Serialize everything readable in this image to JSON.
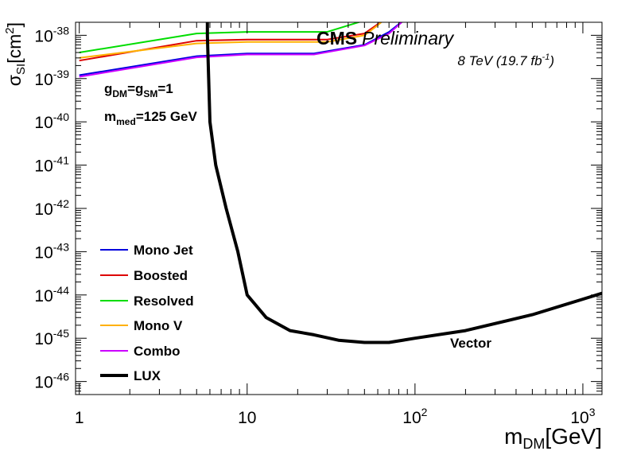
{
  "chart_data": {
    "type": "line",
    "x_scale": "log",
    "y_scale": "log",
    "xlim": [
      0.95,
      1300
    ],
    "ylim": [
      5e-47,
      2e-38
    ],
    "x_ticks": [
      {
        "value": 1,
        "base": "1",
        "exp": ""
      },
      {
        "value": 10,
        "base": "10",
        "exp": ""
      },
      {
        "value": 100,
        "base": "10",
        "exp": "2"
      },
      {
        "value": 1000,
        "base": "10",
        "exp": "3"
      }
    ],
    "y_ticks": [
      {
        "value": 1e-38,
        "base": "10",
        "exp": "-38"
      },
      {
        "value": 1e-39,
        "base": "10",
        "exp": "-39"
      },
      {
        "value": 1e-40,
        "base": "10",
        "exp": "-40"
      },
      {
        "value": 1e-41,
        "base": "10",
        "exp": "-41"
      },
      {
        "value": 1e-42,
        "base": "10",
        "exp": "-42"
      },
      {
        "value": 1e-43,
        "base": "10",
        "exp": "-43"
      },
      {
        "value": 1e-44,
        "base": "10",
        "exp": "-44"
      },
      {
        "value": 1e-45,
        "base": "10",
        "exp": "-45"
      },
      {
        "value": 1e-46,
        "base": "10",
        "exp": "-46"
      }
    ],
    "xlabel": {
      "main": "m",
      "sub": "DM",
      "unit": "[GeV]"
    },
    "ylabel": {
      "main": "σ",
      "sub": "SI",
      "unit": "[cm",
      "sup": "2",
      "close": "]"
    },
    "header": {
      "cms": "CMS",
      "preliminary": "Preliminary",
      "lumi": "8 TeV (19.7 fb",
      "lumi_sup": "-1",
      "lumi_close": ")"
    },
    "annotations": {
      "coupling": {
        "g1": "g",
        "s1": "DM",
        "eq": "=g",
        "s2": "SM",
        "val": "=1"
      },
      "mediator": {
        "m": "m",
        "s": "med",
        "val": "=125 GeV"
      },
      "model": "Vector"
    },
    "legend_position": "bottom-left",
    "series": [
      {
        "name": "Mono Jet",
        "color": "#0000dd",
        "width": 2,
        "points": [
          [
            1,
            1.2e-39
          ],
          [
            5,
            3.3e-39
          ],
          [
            10,
            3.8e-39
          ],
          [
            25,
            3.8e-39
          ],
          [
            50,
            6e-39
          ],
          [
            70,
            1.2e-38
          ],
          [
            90,
            2.6e-38
          ]
        ]
      },
      {
        "name": "Boosted",
        "color": "#dd0000",
        "width": 2,
        "points": [
          [
            1,
            2.6e-39
          ],
          [
            5,
            7.5e-39
          ],
          [
            10,
            8e-39
          ],
          [
            30,
            8e-39
          ],
          [
            50,
            1.1e-38
          ],
          [
            60,
            1.8e-38
          ],
          [
            68,
            2.6e-38
          ]
        ]
      },
      {
        "name": "Resolved",
        "color": "#00dd00",
        "width": 2,
        "points": [
          [
            1,
            4e-39
          ],
          [
            5,
            1.1e-38
          ],
          [
            10,
            1.2e-38
          ],
          [
            30,
            1.2e-38
          ],
          [
            50,
            2.2e-38
          ],
          [
            55,
            2.6e-38
          ]
        ]
      },
      {
        "name": "Mono V",
        "color": "#ffb000",
        "width": 2,
        "points": [
          [
            1,
            3e-39
          ],
          [
            5,
            6.5e-39
          ],
          [
            10,
            7e-39
          ],
          [
            30,
            7e-39
          ],
          [
            50,
            1e-38
          ],
          [
            60,
            1.7e-38
          ],
          [
            68,
            2.6e-38
          ]
        ]
      },
      {
        "name": "Combo",
        "color": "#cc00ff",
        "width": 2,
        "points": [
          [
            1,
            1.1e-39
          ],
          [
            5,
            3.1e-39
          ],
          [
            10,
            3.6e-39
          ],
          [
            25,
            3.6e-39
          ],
          [
            50,
            5.8e-39
          ],
          [
            70,
            1.1e-38
          ],
          [
            90,
            2.6e-38
          ]
        ]
      },
      {
        "name": "LUX",
        "color": "#000000",
        "width": 4,
        "points": [
          [
            5.8,
            2e-38
          ],
          [
            5.8,
            1e-38
          ],
          [
            5.9,
            1e-39
          ],
          [
            6,
            1e-40
          ],
          [
            6.5,
            1e-41
          ],
          [
            7.5,
            1e-42
          ],
          [
            8.8,
            1e-43
          ],
          [
            10,
            1e-44
          ],
          [
            13,
            3e-45
          ],
          [
            18,
            1.5e-45
          ],
          [
            25,
            1.2e-45
          ],
          [
            35,
            9e-46
          ],
          [
            50,
            8e-46
          ],
          [
            70,
            8e-46
          ],
          [
            100,
            1e-45
          ],
          [
            200,
            1.5e-45
          ],
          [
            500,
            3.5e-45
          ],
          [
            1000,
            8e-45
          ],
          [
            1300,
            1.1e-44
          ]
        ]
      }
    ]
  }
}
